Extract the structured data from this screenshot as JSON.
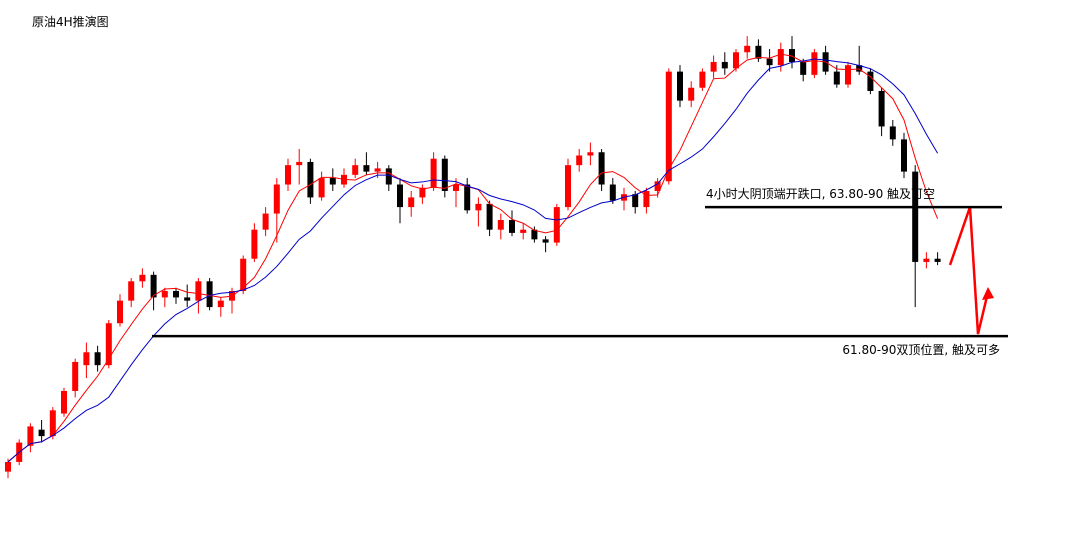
{
  "chart_data": {
    "type": "candlestick",
    "title": "原油4H推演图",
    "ylim": [
      58.69,
      67.06
    ],
    "up_color": "#ff0000",
    "down_color": "#000000",
    "levels": [
      {
        "value": 63.85,
        "label": "4小时大阴顶端开跌口, 63.80-90  触及可空"
      },
      {
        "value": 61.85,
        "label": "61.80-90双顶位置, 触及可多"
      }
    ],
    "candles": [
      [
        59.75,
        59.95,
        59.65,
        59.9
      ],
      [
        59.9,
        60.25,
        59.85,
        60.2
      ],
      [
        60.15,
        60.5,
        60.05,
        60.45
      ],
      [
        60.4,
        60.55,
        60.2,
        60.3
      ],
      [
        60.3,
        60.75,
        60.25,
        60.7
      ],
      [
        60.65,
        61.05,
        60.6,
        61.0
      ],
      [
        61.0,
        61.5,
        60.9,
        61.45
      ],
      [
        61.4,
        61.75,
        61.2,
        61.6
      ],
      [
        61.6,
        61.7,
        61.3,
        61.4
      ],
      [
        61.4,
        62.1,
        61.35,
        62.05
      ],
      [
        62.05,
        62.5,
        62.0,
        62.4
      ],
      [
        62.4,
        62.75,
        62.3,
        62.7
      ],
      [
        62.7,
        62.9,
        62.6,
        62.8
      ],
      [
        62.8,
        62.85,
        62.25,
        62.45
      ],
      [
        62.45,
        62.6,
        62.3,
        62.55
      ],
      [
        62.55,
        62.6,
        62.35,
        62.45
      ],
      [
        62.45,
        62.65,
        62.3,
        62.4
      ],
      [
        62.4,
        62.75,
        62.2,
        62.7
      ],
      [
        62.7,
        62.75,
        62.25,
        62.3
      ],
      [
        62.3,
        62.45,
        62.15,
        62.4
      ],
      [
        62.4,
        62.6,
        62.2,
        62.55
      ],
      [
        62.55,
        63.1,
        62.5,
        63.05
      ],
      [
        63.05,
        63.6,
        63.0,
        63.5
      ],
      [
        63.5,
        63.85,
        63.4,
        63.75
      ],
      [
        63.75,
        64.3,
        63.3,
        64.2
      ],
      [
        64.2,
        64.6,
        64.1,
        64.5
      ],
      [
        64.5,
        64.75,
        64.2,
        64.55
      ],
      [
        64.55,
        64.6,
        63.9,
        64.0
      ],
      [
        64.0,
        64.4,
        63.95,
        64.3
      ],
      [
        64.3,
        64.45,
        64.1,
        64.2
      ],
      [
        64.2,
        64.45,
        64.15,
        64.35
      ],
      [
        64.35,
        64.6,
        64.3,
        64.5
      ],
      [
        64.5,
        64.7,
        64.35,
        64.4
      ],
      [
        64.4,
        64.55,
        64.3,
        64.45
      ],
      [
        64.45,
        64.5,
        64.1,
        64.2
      ],
      [
        64.2,
        64.3,
        63.6,
        63.85
      ],
      [
        63.85,
        64.1,
        63.7,
        64.0
      ],
      [
        64.0,
        64.2,
        63.9,
        64.15
      ],
      [
        64.15,
        64.7,
        64.1,
        64.6
      ],
      [
        64.6,
        64.65,
        64.0,
        64.1
      ],
      [
        64.1,
        64.3,
        63.85,
        64.2
      ],
      [
        64.2,
        64.3,
        63.75,
        63.8
      ],
      [
        63.8,
        64.0,
        63.55,
        63.9
      ],
      [
        63.9,
        63.95,
        63.4,
        63.5
      ],
      [
        63.5,
        63.75,
        63.35,
        63.65
      ],
      [
        63.65,
        63.8,
        63.4,
        63.45
      ],
      [
        63.45,
        63.6,
        63.35,
        63.5
      ],
      [
        63.5,
        63.55,
        63.3,
        63.35
      ],
      [
        63.35,
        63.4,
        63.15,
        63.3
      ],
      [
        63.3,
        63.9,
        63.25,
        63.85
      ],
      [
        63.85,
        64.6,
        63.8,
        64.5
      ],
      [
        64.5,
        64.75,
        64.4,
        64.65
      ],
      [
        64.65,
        64.85,
        64.5,
        64.7
      ],
      [
        64.7,
        64.75,
        64.1,
        64.2
      ],
      [
        64.2,
        64.3,
        63.9,
        63.95
      ],
      [
        63.95,
        64.15,
        63.8,
        64.05
      ],
      [
        64.05,
        64.1,
        63.75,
        63.85
      ],
      [
        63.85,
        64.15,
        63.75,
        64.1
      ],
      [
        64.1,
        64.3,
        64.0,
        64.25
      ],
      [
        64.25,
        66.0,
        64.2,
        65.95
      ],
      [
        65.95,
        66.05,
        65.4,
        65.5
      ],
      [
        65.5,
        65.8,
        65.4,
        65.7
      ],
      [
        65.7,
        66.0,
        65.65,
        65.95
      ],
      [
        65.95,
        66.2,
        65.85,
        66.1
      ],
      [
        66.1,
        66.25,
        65.9,
        66.0
      ],
      [
        66.0,
        66.3,
        65.95,
        66.25
      ],
      [
        66.25,
        66.5,
        66.15,
        66.35
      ],
      [
        66.35,
        66.45,
        66.1,
        66.15
      ],
      [
        66.15,
        66.3,
        65.95,
        66.05
      ],
      [
        66.05,
        66.4,
        65.95,
        66.3
      ],
      [
        66.3,
        66.5,
        66.0,
        66.1
      ],
      [
        66.1,
        66.15,
        65.8,
        65.9
      ],
      [
        65.9,
        66.3,
        65.85,
        66.25
      ],
      [
        66.25,
        66.35,
        65.9,
        65.95
      ],
      [
        65.95,
        66.05,
        65.7,
        65.75
      ],
      [
        65.75,
        66.1,
        65.7,
        66.05
      ],
      [
        66.05,
        66.35,
        65.9,
        65.95
      ],
      [
        65.95,
        66.0,
        65.6,
        65.65
      ],
      [
        65.65,
        65.7,
        64.95,
        65.1
      ],
      [
        65.1,
        65.2,
        64.8,
        64.9
      ],
      [
        64.9,
        65.0,
        64.3,
        64.4
      ],
      [
        64.4,
        64.5,
        62.3,
        63.0
      ],
      [
        63.0,
        63.15,
        62.9,
        63.05
      ],
      [
        63.05,
        63.15,
        62.95,
        63.0
      ]
    ]
  }
}
